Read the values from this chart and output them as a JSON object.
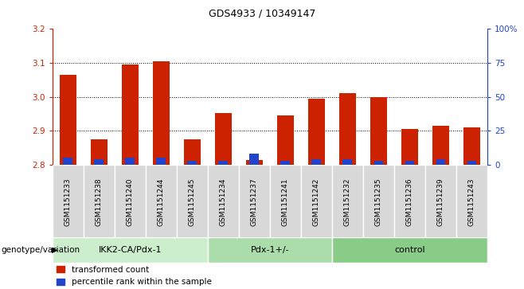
{
  "title": "GDS4933 / 10349147",
  "samples": [
    "GSM1151233",
    "GSM1151238",
    "GSM1151240",
    "GSM1151244",
    "GSM1151245",
    "GSM1151234",
    "GSM1151237",
    "GSM1151241",
    "GSM1151242",
    "GSM1151232",
    "GSM1151235",
    "GSM1151236",
    "GSM1151239",
    "GSM1151243"
  ],
  "red_values": [
    3.065,
    2.875,
    3.095,
    3.105,
    2.875,
    2.952,
    2.813,
    2.945,
    2.995,
    3.01,
    2.998,
    2.905,
    2.915,
    2.91
  ],
  "blue_pct": [
    5,
    4,
    5,
    5,
    3,
    3,
    8,
    3,
    4,
    4,
    3,
    3,
    4,
    3
  ],
  "groups": [
    {
      "label": "IKK2-CA/Pdx-1",
      "start": 0,
      "end": 5
    },
    {
      "label": "Pdx-1+/-",
      "start": 5,
      "end": 9
    },
    {
      "label": "control",
      "start": 9,
      "end": 14
    }
  ],
  "group_colors": [
    "#cceecc",
    "#aaddaa",
    "#88cc88"
  ],
  "ylim_left": [
    2.8,
    3.2
  ],
  "ylim_right": [
    0,
    100
  ],
  "left_ticks": [
    2.8,
    2.9,
    3.0,
    3.1,
    3.2
  ],
  "right_ticks": [
    0,
    25,
    50,
    75,
    100
  ],
  "right_tick_labels": [
    "0",
    "25",
    "50",
    "75",
    "100%"
  ],
  "bar_color_red": "#cc2200",
  "bar_color_blue": "#2244cc",
  "bar_width": 0.55,
  "background_plot": "#ffffff",
  "genotype_label": "genotype/variation",
  "legend_red": "transformed count",
  "legend_blue": "percentile rank within the sample",
  "grid_lines": [
    2.9,
    3.0,
    3.1
  ]
}
